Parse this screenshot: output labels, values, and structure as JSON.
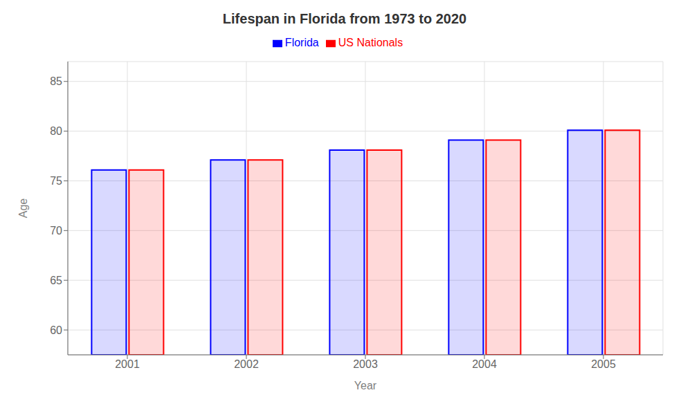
{
  "chart_data": {
    "type": "bar",
    "title": "Lifespan in Florida from 1973 to 2020",
    "x_label": "Year",
    "y_label": "Age",
    "categories": [
      "2001",
      "2002",
      "2003",
      "2004",
      "2005"
    ],
    "series": [
      {
        "name": "Florida",
        "color": "#0000ff",
        "values": [
          76.1,
          77.1,
          78.1,
          79.1,
          80.1
        ]
      },
      {
        "name": "US Nationals",
        "color": "#ff0000",
        "values": [
          76.1,
          77.1,
          78.1,
          79.1,
          80.1
        ]
      }
    ],
    "ylim": [
      57.5,
      87
    ],
    "yticks": [
      60,
      65,
      70,
      75,
      80,
      85
    ],
    "grid": true,
    "legend": "top"
  }
}
